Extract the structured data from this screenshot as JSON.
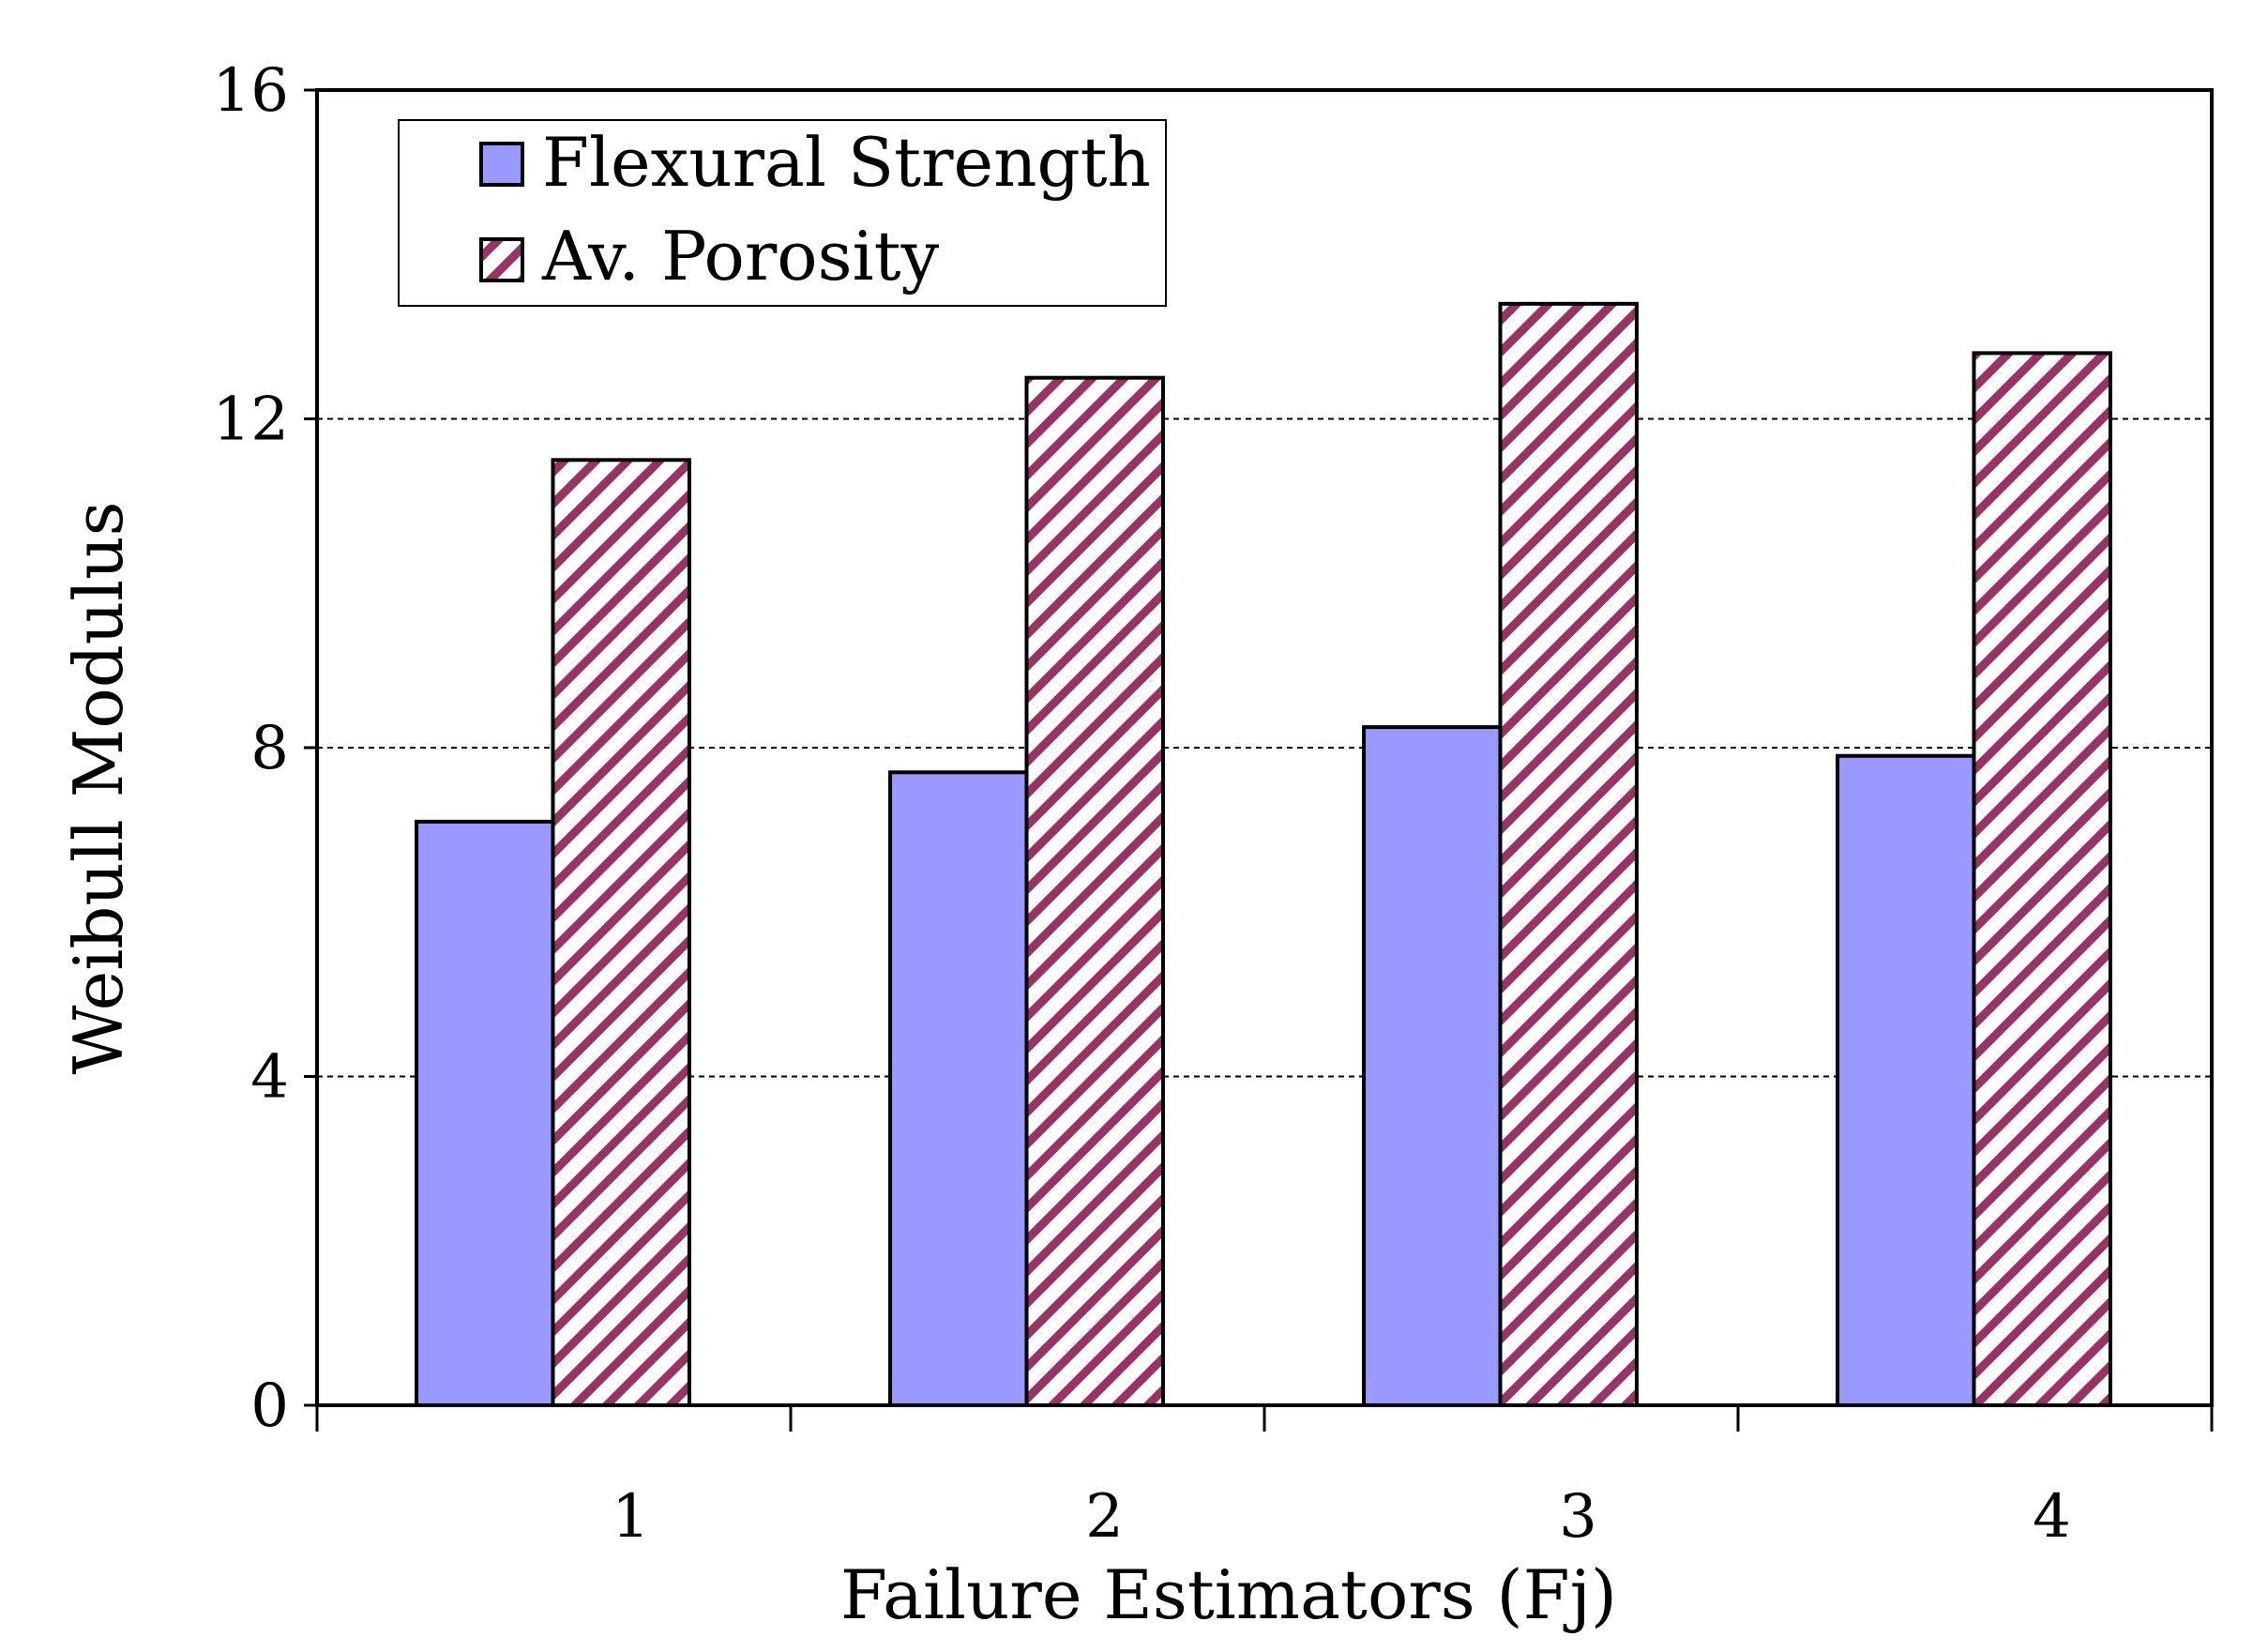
{
  "chart_data": {
    "type": "bar",
    "title": "",
    "xlabel": "Failure Estimators (Fj)",
    "ylabel": "Weibull Modulus",
    "categories": [
      "1",
      "2",
      "3",
      "4"
    ],
    "series": [
      {
        "name": "Flexural Strength",
        "values": [
          7.1,
          7.7,
          8.25,
          7.9
        ],
        "fill": "#9999ff",
        "pattern": "solid"
      },
      {
        "name": "Av. Porosity",
        "values": [
          11.5,
          12.5,
          13.4,
          12.8
        ],
        "fill": "#ffffff",
        "stripe_color": "#993366",
        "pattern": "diagonal-stripes"
      }
    ],
    "ylim": [
      0,
      16
    ],
    "yticks": [
      0,
      4,
      8,
      12,
      16
    ],
    "ytick_labels": [
      "0",
      "4",
      "8",
      "12",
      "16"
    ],
    "grid": "horizontal-dashed",
    "legend_position": "top-left"
  }
}
